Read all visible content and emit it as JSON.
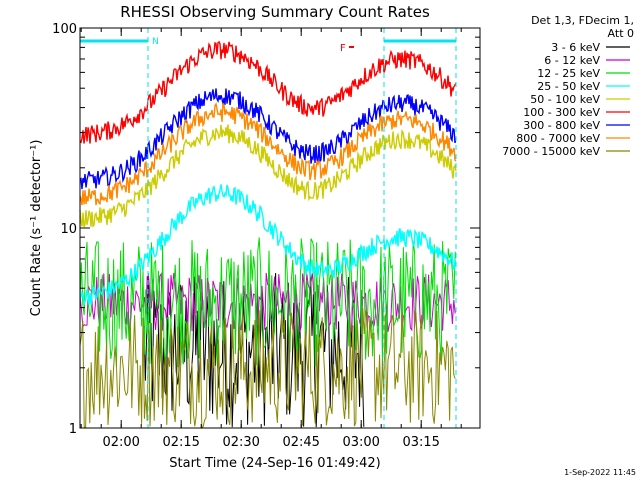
{
  "chart_data": {
    "type": "line",
    "title": "RHESSI Observing Summary Count Rates",
    "xlabel": "Start Time (24-Sep-16 01:49:42)",
    "ylabel": "Count Rate (s⁻¹ detector⁻¹)",
    "x_ticks": [
      "02:00",
      "02:15",
      "02:30",
      "02:45",
      "03:00",
      "03:15"
    ],
    "x_tick_minutes": [
      10.3,
      25.3,
      40.3,
      55.3,
      70.3,
      85.3
    ],
    "x_range_minutes": [
      0,
      100
    ],
    "y_scale": "log",
    "y_range": [
      1,
      100
    ],
    "y_ticks": [
      "1",
      "10",
      "100"
    ],
    "legend": {
      "placement": "right",
      "header": [
        "Det 1,3, FDecim 1,",
        "Att 0"
      ]
    },
    "series": [
      {
        "name": "3 - 6 keV",
        "color": "#000000",
        "kind": "noise",
        "low": 1.0,
        "high": 6.0,
        "start": 16,
        "end": 71
      },
      {
        "name": "6 - 12 keV",
        "color": "#cc00cc",
        "kind": "noise",
        "low": 3.0,
        "high": 6.0,
        "start": 0,
        "end": 94
      },
      {
        "name": "12 - 25 keV",
        "color": "#00dd00",
        "kind": "noise",
        "low": 2.0,
        "high": 9.0,
        "start": 0,
        "end": 94
      },
      {
        "name": "25 - 50 keV",
        "color": "#00ffff",
        "kind": "smooth",
        "base": 4.5,
        "peaks": [
          15,
          9
        ]
      },
      {
        "name": "50 - 100 keV",
        "color": "#cccc00",
        "kind": "smooth",
        "base": 11,
        "peaks": [
          30,
          28
        ]
      },
      {
        "name": "100 - 300 keV",
        "color": "#ff0000",
        "kind": "smooth",
        "base": 29,
        "peaks": [
          78,
          70
        ]
      },
      {
        "name": "300 - 800 keV",
        "color": "#0000ff",
        "kind": "smooth",
        "base": 17,
        "peaks": [
          46,
          42
        ]
      },
      {
        "name": "800 - 7000 keV",
        "color": "#ff8800",
        "kind": "smooth",
        "base": 14,
        "peaks": [
          38,
          35
        ]
      },
      {
        "name": "7000 - 15000 keV",
        "color": "#888800",
        "kind": "noise",
        "low": 1.0,
        "high": 4.0,
        "start": 0,
        "end": 94
      }
    ],
    "peak_minutes": [
      35.3,
      80.5
    ],
    "annotations": {
      "flag_n": "N",
      "flag_f": "F",
      "night_bars_minutes": [
        [
          0,
          17
        ],
        [
          76,
          94
        ]
      ],
      "dashed_lines_minutes": [
        17,
        76,
        94
      ],
      "flag_f_minute": 65
    },
    "footer_date": "1-Sep-2022 11:45"
  }
}
